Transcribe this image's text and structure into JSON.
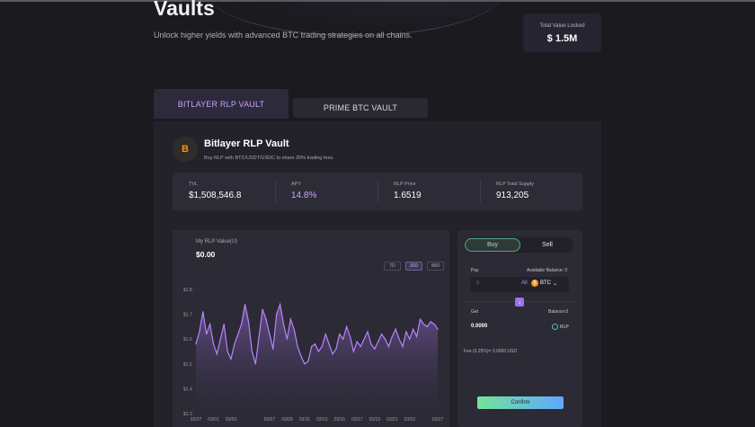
{
  "header": {
    "title": "Vaults",
    "subtitle": "Unlock higher yields with advanced BTC trading strategies on all chains.",
    "tvl_label": "Total Value Locked",
    "tvl_value": "$ 1.5M"
  },
  "tabs": [
    {
      "label": "BITLAYER RLP VAULT",
      "active": true
    },
    {
      "label": "PRIME BTC VAULT",
      "active": false
    }
  ],
  "vault": {
    "logo_icon": "bitlayer-logo-icon",
    "logo_text": "B",
    "name": "Bitlayer RLP Vault",
    "description": "Buy RLP with BTC/USDT/USDC to share 30% trading fees.",
    "stats": [
      {
        "label": "TVL",
        "value": "$1,508,546.8"
      },
      {
        "label": "APY",
        "value": "14.8%"
      },
      {
        "label": "RLP Price",
        "value": "1.6519"
      },
      {
        "label": "RLP Total Supply",
        "value": "913,205"
      }
    ]
  },
  "chart_panel": {
    "label": "My RLP Value(U)",
    "value": "$0.00",
    "ranges": [
      {
        "label": "7D",
        "active": false
      },
      {
        "label": "30D",
        "active": true
      },
      {
        "label": "90D",
        "active": false
      }
    ]
  },
  "chart_data": {
    "type": "area",
    "title": "",
    "xlabel": "",
    "ylabel": "",
    "ylim": [
      1.3,
      1.8
    ],
    "y_ticks": [
      1.8,
      1.7,
      1.6,
      1.5,
      1.4,
      1.3
    ],
    "y_tick_labels": [
      "$1.8",
      "$1.7",
      "$1.6",
      "$1.5",
      "$1.4",
      "$1.3"
    ],
    "x_tick_labels": [
      "02/27",
      "03/01",
      "03/03",
      "03/07",
      "03/09",
      "03/11",
      "03/13",
      "03/15",
      "03/17",
      "03/19",
      "03/21",
      "03/23",
      "03/27"
    ],
    "x_tick_index": [
      0,
      5,
      10,
      21,
      26,
      31,
      36,
      41,
      46,
      51,
      56,
      61,
      69
    ],
    "values": [
      1.58,
      1.63,
      1.71,
      1.62,
      1.66,
      1.58,
      1.54,
      1.6,
      1.66,
      1.55,
      1.52,
      1.58,
      1.62,
      1.66,
      1.74,
      1.67,
      1.55,
      1.5,
      1.61,
      1.72,
      1.68,
      1.62,
      1.56,
      1.7,
      1.74,
      1.66,
      1.6,
      1.68,
      1.64,
      1.57,
      1.53,
      1.5,
      1.51,
      1.57,
      1.58,
      1.55,
      1.57,
      1.62,
      1.58,
      1.54,
      1.56,
      1.62,
      1.6,
      1.65,
      1.61,
      1.55,
      1.59,
      1.57,
      1.6,
      1.63,
      1.58,
      1.56,
      1.59,
      1.62,
      1.6,
      1.57,
      1.61,
      1.64,
      1.6,
      1.57,
      1.63,
      1.6,
      1.64,
      1.61,
      1.68,
      1.66,
      1.65,
      1.67,
      1.66,
      1.64
    ],
    "colors": {
      "line": "#b983ff",
      "fill_top": "#7a5aa8",
      "fill_bottom": "#2b2a35",
      "grid": "#3a3945"
    }
  },
  "trade": {
    "buy_label": "Buy",
    "sell_label": "Sell",
    "pay_label": "Pay",
    "available_balance_label": "Available Balance: 0",
    "pay_placeholder": "0",
    "all_label": "All",
    "pay_token": "BTC",
    "get_label": "Get",
    "balance_label": "Balance:0",
    "get_value": "0.0000",
    "get_token": "RLP",
    "fee_text": "Fee (0.25%)= 0.0000 USD",
    "confirm_label": "Confirm"
  },
  "colors": {
    "accent": "#c9a3ff",
    "background": "#1b1a1f",
    "panel": "#23222b"
  }
}
